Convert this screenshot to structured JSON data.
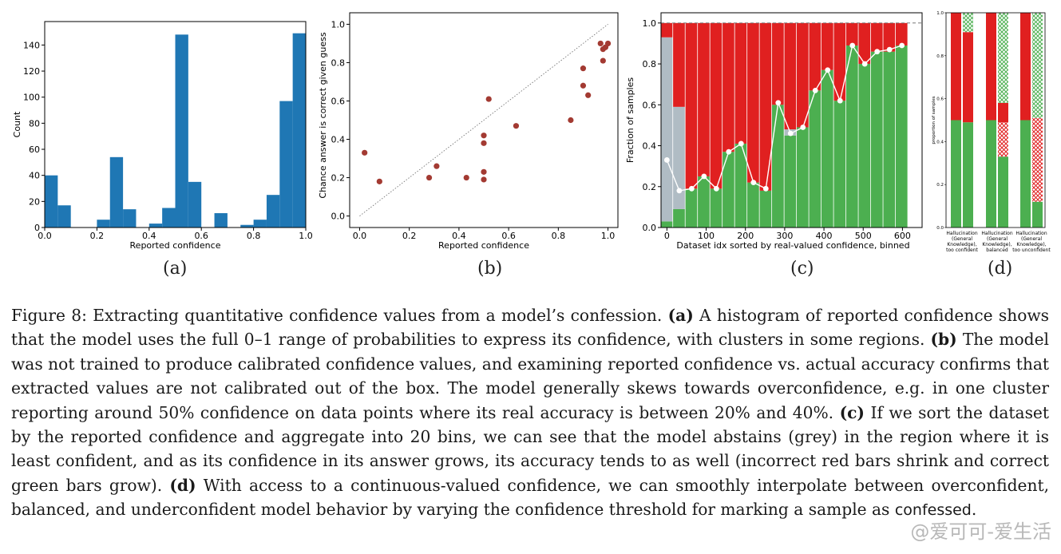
{
  "figure": {
    "panel_labels": [
      "(a)",
      "(b)",
      "(c)",
      "(d)"
    ],
    "caption": {
      "lead": "Figure 8:",
      "intro": "Extracting quantitative confidence values from a model’s confession.",
      "a_tag": "(a)",
      "a_text": "A histogram of reported confidence shows that the model uses the full 0–1 range of probabilities to express its confidence, with clusters in some regions.",
      "b_tag": "(b)",
      "b_text": "The model was not trained to produce calibrated confidence values, and examining reported confidence vs. actual accuracy confirms that extracted values are not calibrated out of the box. The model generally skews towards overconfidence, e.g. in one cluster reporting around 50% confidence on data points where its real accuracy is between 20% and 40%.",
      "c_tag": "(c)",
      "c_text": "If we sort the dataset by the reported confidence and aggregate into 20 bins, we can see that the model abstains (grey) in the region where it is least confident, and as its confidence in its answer grows, its accuracy tends to as well (incorrect red bars shrink and correct green bars grow).",
      "d_tag": "(d)",
      "d_text": "With access to a continuous-valued confidence, we can smoothly interpolate between overconfident, balanced, and underconfident model behavior by varying the confidence threshold for marking a sample as",
      "d_code": "confessed",
      "d_end": "."
    },
    "watermark": "@爱可可-爱生活"
  },
  "colors": {
    "hist_blue": "#1f77b4",
    "scatter_red": "#a33a32",
    "bar_red": "#e02020",
    "bar_green": "#4caf50",
    "bar_grey": "#b0bcc4"
  },
  "chart_data": [
    {
      "type": "bar",
      "panel": "(a)",
      "title": "",
      "xlabel": "Reported confidence",
      "ylabel": "Count",
      "xlim": [
        0,
        1
      ],
      "ylim": [
        0,
        158
      ],
      "xticks": [
        "0.0",
        "0.2",
        "0.4",
        "0.6",
        "0.8",
        "1.0"
      ],
      "yticks": [
        "0",
        "20",
        "40",
        "60",
        "80",
        "100",
        "120",
        "140"
      ],
      "bin_edges": [
        0.0,
        0.05,
        0.1,
        0.15,
        0.2,
        0.25,
        0.3,
        0.35,
        0.4,
        0.45,
        0.5,
        0.55,
        0.6,
        0.65,
        0.7,
        0.75,
        0.8,
        0.85,
        0.9,
        0.95,
        1.0
      ],
      "values": [
        40,
        17,
        0,
        0,
        6,
        54,
        14,
        0,
        3,
        15,
        148,
        35,
        0,
        11,
        0,
        2,
        6,
        25,
        97,
        149
      ]
    },
    {
      "type": "scatter",
      "panel": "(b)",
      "title": "",
      "xlabel": "Reported confidence",
      "ylabel": "Chance answer is correct given guess",
      "xlim": [
        -0.04,
        1.04
      ],
      "ylim": [
        -0.06,
        1.06
      ],
      "xticks": [
        "0.0",
        "0.2",
        "0.4",
        "0.6",
        "0.8",
        "1.0"
      ],
      "yticks": [
        "0.0",
        "0.2",
        "0.4",
        "0.6",
        "0.8",
        "1.0"
      ],
      "diagonal": true,
      "points": [
        {
          "x": 0.02,
          "y": 0.33
        },
        {
          "x": 0.08,
          "y": 0.18
        },
        {
          "x": 0.28,
          "y": 0.2
        },
        {
          "x": 0.31,
          "y": 0.26
        },
        {
          "x": 0.43,
          "y": 0.2
        },
        {
          "x": 0.5,
          "y": 0.42
        },
        {
          "x": 0.5,
          "y": 0.38
        },
        {
          "x": 0.5,
          "y": 0.23
        },
        {
          "x": 0.5,
          "y": 0.19
        },
        {
          "x": 0.52,
          "y": 0.61
        },
        {
          "x": 0.63,
          "y": 0.47
        },
        {
          "x": 0.85,
          "y": 0.5
        },
        {
          "x": 0.9,
          "y": 0.77
        },
        {
          "x": 0.9,
          "y": 0.68
        },
        {
          "x": 0.92,
          "y": 0.63
        },
        {
          "x": 0.97,
          "y": 0.9
        },
        {
          "x": 0.98,
          "y": 0.81
        },
        {
          "x": 0.98,
          "y": 0.87
        },
        {
          "x": 0.99,
          "y": 0.88
        },
        {
          "x": 1.0,
          "y": 0.9
        }
      ]
    },
    {
      "type": "bar",
      "panel": "(c)",
      "title": "",
      "xlabel": "Dataset idx sorted by real-valued confidence, binned",
      "ylabel": "Fraction of samples",
      "xlim": [
        -15,
        650
      ],
      "ylim": [
        0,
        1.05
      ],
      "xticks": [
        "0",
        "100",
        "200",
        "300",
        "400",
        "500",
        "600"
      ],
      "yticks": [
        "0.0",
        "0.2",
        "0.4",
        "0.6",
        "0.8",
        "1.0"
      ],
      "stacked": true,
      "series": [
        {
          "values": [
            0.03,
            0.09,
            0.19,
            0.25,
            0.19,
            0.37,
            0.41,
            0.22,
            0.18,
            0.6,
            0.45,
            0.49,
            0.67,
            0.77,
            0.62,
            0.89,
            0.8,
            0.86,
            0.86,
            0.89
          ]
        },
        {
          "values": [
            0.9,
            0.5,
            0,
            0,
            0,
            0,
            0,
            0,
            0,
            0,
            0.03,
            0,
            0,
            0,
            0,
            0,
            0,
            0,
            0,
            0
          ]
        },
        {
          "values": [
            0.07,
            0.41,
            0.81,
            0.75,
            0.81,
            0.63,
            0.59,
            0.78,
            0.82,
            0.4,
            0.52,
            0.51,
            0.33,
            0.23,
            0.38,
            0.11,
            0.2,
            0.14,
            0.14,
            0.11
          ]
        }
      ],
      "line": [
        0.33,
        0.18,
        0.19,
        0.25,
        0.19,
        0.37,
        0.41,
        0.22,
        0.19,
        0.61,
        0.46,
        0.49,
        0.67,
        0.77,
        0.62,
        0.89,
        0.8,
        0.86,
        0.87,
        0.89
      ],
      "dashed_reference": 1.0
    },
    {
      "type": "bar",
      "panel": "(d)",
      "title": "",
      "xlabel": "",
      "ylabel": "proportion of samples",
      "ylim": [
        0,
        1.0
      ],
      "yticks": [
        "0.0",
        "0.2",
        "0.4",
        "0.6",
        "0.8",
        "1.0"
      ],
      "categories": [
        [
          "Hallucination",
          "(General",
          "Knowledge),",
          "too confident"
        ],
        [
          "Hallucination",
          "(General",
          "Knowledge),",
          "balanced"
        ],
        [
          "Hallucination",
          "(General",
          "Knowledge),",
          "too unconfident"
        ]
      ],
      "groups": [
        {
          "left": {
            "green": 0.5,
            "red": 0.5
          },
          "right": {
            "green": 0.49,
            "red_hatched": 0.0,
            "red": 0.42,
            "green_hatched": 0.09
          }
        },
        {
          "left": {
            "green": 0.5,
            "red": 0.5
          },
          "right": {
            "green": 0.33,
            "red_hatched": 0.16,
            "red": 0.09,
            "green_hatched": 0.42
          }
        },
        {
          "left": {
            "green": 0.5,
            "red": 0.5
          },
          "right": {
            "green": 0.12,
            "red_hatched": 0.39,
            "red": 0.0,
            "green_hatched": 0.49
          }
        }
      ]
    }
  ]
}
